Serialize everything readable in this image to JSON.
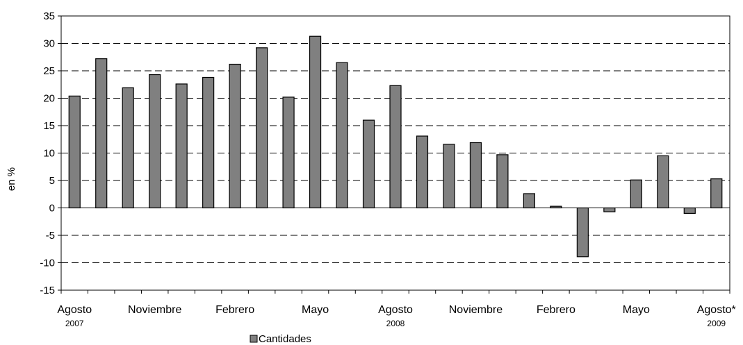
{
  "chart_data": {
    "type": "bar",
    "ylabel": "en %",
    "ylim": [
      -15,
      35
    ],
    "yticks": [
      35,
      30,
      25,
      20,
      15,
      10,
      5,
      0,
      -5,
      -10,
      -15
    ],
    "grid": true,
    "legend_position": "bottom-center",
    "series": [
      {
        "name": "Cantidades",
        "color": "#808080",
        "values": [
          20.4,
          27.2,
          21.9,
          24.3,
          22.6,
          23.8,
          26.2,
          29.2,
          20.2,
          31.3,
          26.5,
          16.0,
          22.3,
          13.1,
          11.6,
          11.9,
          9.7,
          2.6,
          0.3,
          -8.9,
          -0.7,
          5.1,
          9.5,
          -1.0,
          5.3
        ]
      }
    ],
    "x_labels": [
      {
        "index": 0,
        "month": "Agosto",
        "year": "2007"
      },
      {
        "index": 3,
        "month": "Noviembre",
        "year": ""
      },
      {
        "index": 6,
        "month": "Febrero",
        "year": ""
      },
      {
        "index": 9,
        "month": "Mayo",
        "year": ""
      },
      {
        "index": 12,
        "month": "Agosto",
        "year": "2008"
      },
      {
        "index": 15,
        "month": "Noviembre",
        "year": ""
      },
      {
        "index": 18,
        "month": "Febrero",
        "year": ""
      },
      {
        "index": 21,
        "month": "Mayo",
        "year": ""
      },
      {
        "index": 24,
        "month": "Agosto*",
        "year": "2009"
      }
    ]
  }
}
